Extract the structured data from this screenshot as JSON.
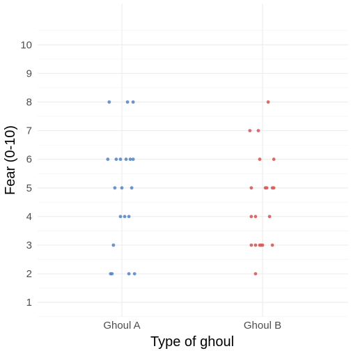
{
  "chart_data": {
    "type": "scatter",
    "title": "",
    "xlabel": "Type of ghoul",
    "ylabel": "Fear (0-10)",
    "categories": [
      "Ghoul A",
      "Ghoul B"
    ],
    "ylim": [
      0,
      10.5
    ],
    "yticks": [
      1,
      2,
      3,
      4,
      5,
      6,
      7,
      8,
      9,
      10
    ],
    "ytick_labels": [
      "1",
      "2",
      "3",
      "4",
      "5",
      "6",
      "7",
      "8",
      "9",
      "10"
    ],
    "grid": true,
    "legend": "none",
    "jitter": true,
    "series": [
      {
        "category": "Ghoul A",
        "color": "#5b8ac6",
        "points": [
          {
            "jitter": -0.09,
            "y": 8
          },
          {
            "jitter": 0.04,
            "y": 8
          },
          {
            "jitter": 0.08,
            "y": 8
          },
          {
            "jitter": -0.1,
            "y": 6
          },
          {
            "jitter": -0.04,
            "y": 6
          },
          {
            "jitter": -0.01,
            "y": 6
          },
          {
            "jitter": 0.03,
            "y": 6
          },
          {
            "jitter": 0.06,
            "y": 6
          },
          {
            "jitter": 0.08,
            "y": 6
          },
          {
            "jitter": -0.05,
            "y": 5
          },
          {
            "jitter": 0.0,
            "y": 5
          },
          {
            "jitter": 0.07,
            "y": 5
          },
          {
            "jitter": -0.01,
            "y": 4
          },
          {
            "jitter": 0.02,
            "y": 4
          },
          {
            "jitter": 0.05,
            "y": 4
          },
          {
            "jitter": -0.06,
            "y": 3
          },
          {
            "jitter": -0.08,
            "y": 2
          },
          {
            "jitter": -0.07,
            "y": 2
          },
          {
            "jitter": 0.05,
            "y": 2
          },
          {
            "jitter": 0.09,
            "y": 2
          }
        ]
      },
      {
        "category": "Ghoul B",
        "color": "#d65c5c",
        "points": [
          {
            "jitter": 0.04,
            "y": 8
          },
          {
            "jitter": -0.09,
            "y": 7
          },
          {
            "jitter": -0.03,
            "y": 7
          },
          {
            "jitter": -0.02,
            "y": 6
          },
          {
            "jitter": 0.08,
            "y": 6
          },
          {
            "jitter": -0.08,
            "y": 5
          },
          {
            "jitter": 0.02,
            "y": 5
          },
          {
            "jitter": 0.03,
            "y": 5
          },
          {
            "jitter": 0.07,
            "y": 5
          },
          {
            "jitter": 0.08,
            "y": 5
          },
          {
            "jitter": -0.08,
            "y": 4
          },
          {
            "jitter": -0.05,
            "y": 4
          },
          {
            "jitter": 0.05,
            "y": 4
          },
          {
            "jitter": -0.08,
            "y": 3
          },
          {
            "jitter": -0.05,
            "y": 3
          },
          {
            "jitter": -0.02,
            "y": 3
          },
          {
            "jitter": -0.01,
            "y": 3
          },
          {
            "jitter": 0.0,
            "y": 3
          },
          {
            "jitter": 0.07,
            "y": 3
          },
          {
            "jitter": -0.05,
            "y": 2
          }
        ]
      }
    ]
  }
}
